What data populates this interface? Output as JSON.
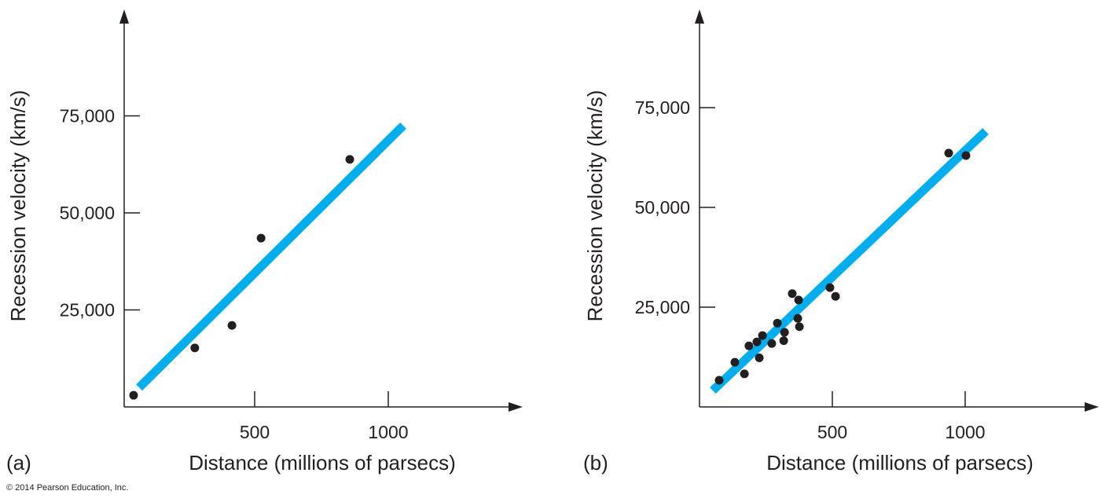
{
  "copyright": "© 2014 Pearson Education, Inc.",
  "colors": {
    "line": "#00aeef",
    "point": "#231f20",
    "axis": "#231f20"
  },
  "chart_data": [
    {
      "type": "scatter",
      "panel_label": "(a)",
      "xlabel": "Distance (millions of parsecs)",
      "ylabel": "Recession velocity (km/s)",
      "xlim": [
        0,
        1450
      ],
      "ylim": [
        0,
        100000
      ],
      "xticks": [
        500,
        1000
      ],
      "xtick_labels": [
        "500",
        "1000"
      ],
      "yticks": [
        25000,
        50000,
        75000
      ],
      "ytick_labels": [
        "25,000",
        "50,000",
        "75,000"
      ],
      "points": [
        [
          47,
          3000
        ],
        [
          276,
          15200
        ],
        [
          415,
          21000
        ],
        [
          524,
          43500
        ],
        [
          856,
          63800
        ]
      ],
      "fit_line": [
        [
          68,
          5000
        ],
        [
          1056,
          72500
        ]
      ]
    },
    {
      "type": "scatter",
      "panel_label": "(b)",
      "xlabel": "Distance (millions of parsecs)",
      "ylabel": "Recession velocity (km/s)",
      "xlim": [
        0,
        1450
      ],
      "ylim": [
        0,
        100000
      ],
      "xticks": [
        500,
        1000
      ],
      "xtick_labels": [
        "500",
        "1000"
      ],
      "yticks": [
        25000,
        50000,
        75000
      ],
      "ytick_labels": [
        "25,000",
        "50,000",
        "75,000"
      ],
      "points": [
        [
          74,
          6700
        ],
        [
          133,
          11200
        ],
        [
          169,
          8300
        ],
        [
          186,
          15300
        ],
        [
          216,
          16300
        ],
        [
          225,
          12300
        ],
        [
          237,
          17900
        ],
        [
          272,
          15900
        ],
        [
          293,
          21000
        ],
        [
          317,
          16600
        ],
        [
          320,
          18700
        ],
        [
          349,
          28400
        ],
        [
          373,
          26800
        ],
        [
          370,
          22200
        ],
        [
          376,
          20100
        ],
        [
          491,
          29900
        ],
        [
          512,
          27700
        ],
        [
          938,
          63600
        ],
        [
          1003,
          63000
        ]
      ],
      "fit_line": [
        [
          50,
          4100
        ],
        [
          1077,
          69100
        ]
      ]
    }
  ]
}
